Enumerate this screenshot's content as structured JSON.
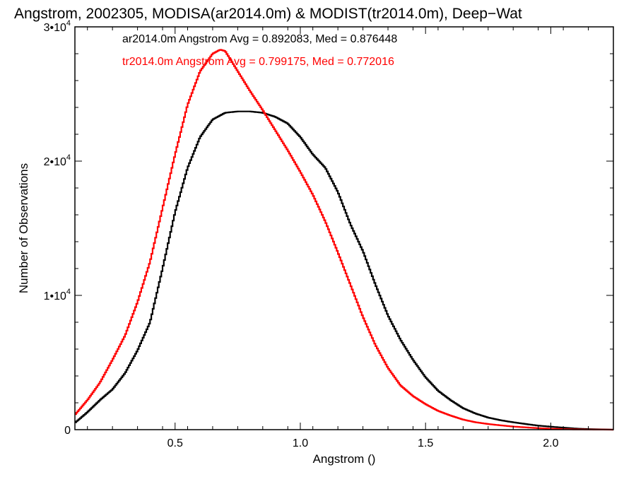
{
  "chart_data": {
    "type": "line",
    "title": "Angstrom, 2002305, MODISA(ar2014.0m) & MODIST(tr2014.0m), Deep−Wat",
    "xlabel": "Angstrom ()",
    "ylabel": "Number of Observations",
    "xlim": [
      0.1,
      2.25
    ],
    "ylim": [
      0,
      30000
    ],
    "x_ticks": [
      {
        "value": 0.5,
        "label": "0.5"
      },
      {
        "value": 1.0,
        "label": "1.0"
      },
      {
        "value": 1.5,
        "label": "1.5"
      },
      {
        "value": 2.0,
        "label": "2.0"
      }
    ],
    "y_ticks": [
      {
        "value": 0,
        "mantissa": "0",
        "exp": ""
      },
      {
        "value": 10000,
        "mantissa": "1•10",
        "exp": "4"
      },
      {
        "value": 20000,
        "mantissa": "2•10",
        "exp": "4"
      },
      {
        "value": 30000,
        "mantissa": "3•10",
        "exp": "4"
      }
    ],
    "legend": [
      {
        "text": "ar2014.0m Angstrom Avg = 0.892083, Med = 0.876448",
        "color": "#000000"
      },
      {
        "text": "tr2014.0m Angstrom Avg = 0.799175, Med = 0.772016",
        "color": "#ff0000"
      }
    ],
    "legend_position": "top-left",
    "grid": false,
    "series": [
      {
        "color": "#000000",
        "x": [
          0.1,
          0.15,
          0.2,
          0.25,
          0.3,
          0.35,
          0.4,
          0.45,
          0.5,
          0.55,
          0.6,
          0.65,
          0.7,
          0.75,
          0.8,
          0.85,
          0.9,
          0.95,
          1.0,
          1.05,
          1.1,
          1.15,
          1.2,
          1.25,
          1.3,
          1.35,
          1.4,
          1.45,
          1.5,
          1.55,
          1.6,
          1.65,
          1.7,
          1.75,
          1.8,
          1.85,
          1.9,
          1.95,
          2.0,
          2.05,
          2.1,
          2.15
        ],
        "y": [
          500,
          1300,
          2200,
          3000,
          4200,
          5900,
          8000,
          12000,
          16200,
          19500,
          21800,
          23100,
          23600,
          23700,
          23700,
          23600,
          23300,
          22800,
          21800,
          20500,
          19500,
          17700,
          15300,
          13300,
          10800,
          8500,
          6700,
          5200,
          3900,
          2900,
          2200,
          1600,
          1200,
          900,
          700,
          550,
          420,
          300,
          220,
          150,
          80,
          40
        ]
      },
      {
        "color": "#ff0000",
        "x": [
          0.1,
          0.15,
          0.2,
          0.25,
          0.3,
          0.35,
          0.4,
          0.45,
          0.5,
          0.55,
          0.6,
          0.65,
          0.68,
          0.7,
          0.75,
          0.8,
          0.85,
          0.9,
          0.95,
          1.0,
          1.05,
          1.1,
          1.15,
          1.2,
          1.25,
          1.3,
          1.35,
          1.4,
          1.45,
          1.5,
          1.55,
          1.6,
          1.65,
          1.7,
          1.75,
          1.8,
          1.85,
          1.9,
          1.95,
          2.0,
          2.05,
          2.1,
          2.15,
          2.2
        ],
        "y": [
          1100,
          2200,
          3500,
          5200,
          7000,
          9500,
          12500,
          16500,
          20500,
          24200,
          26700,
          28000,
          28300,
          28200,
          26700,
          25200,
          23800,
          22300,
          20800,
          19200,
          17500,
          15500,
          13200,
          10800,
          8400,
          6300,
          4600,
          3300,
          2500,
          1900,
          1400,
          1050,
          750,
          550,
          420,
          320,
          230,
          170,
          110,
          70,
          40,
          20,
          10,
          5
        ]
      }
    ]
  }
}
